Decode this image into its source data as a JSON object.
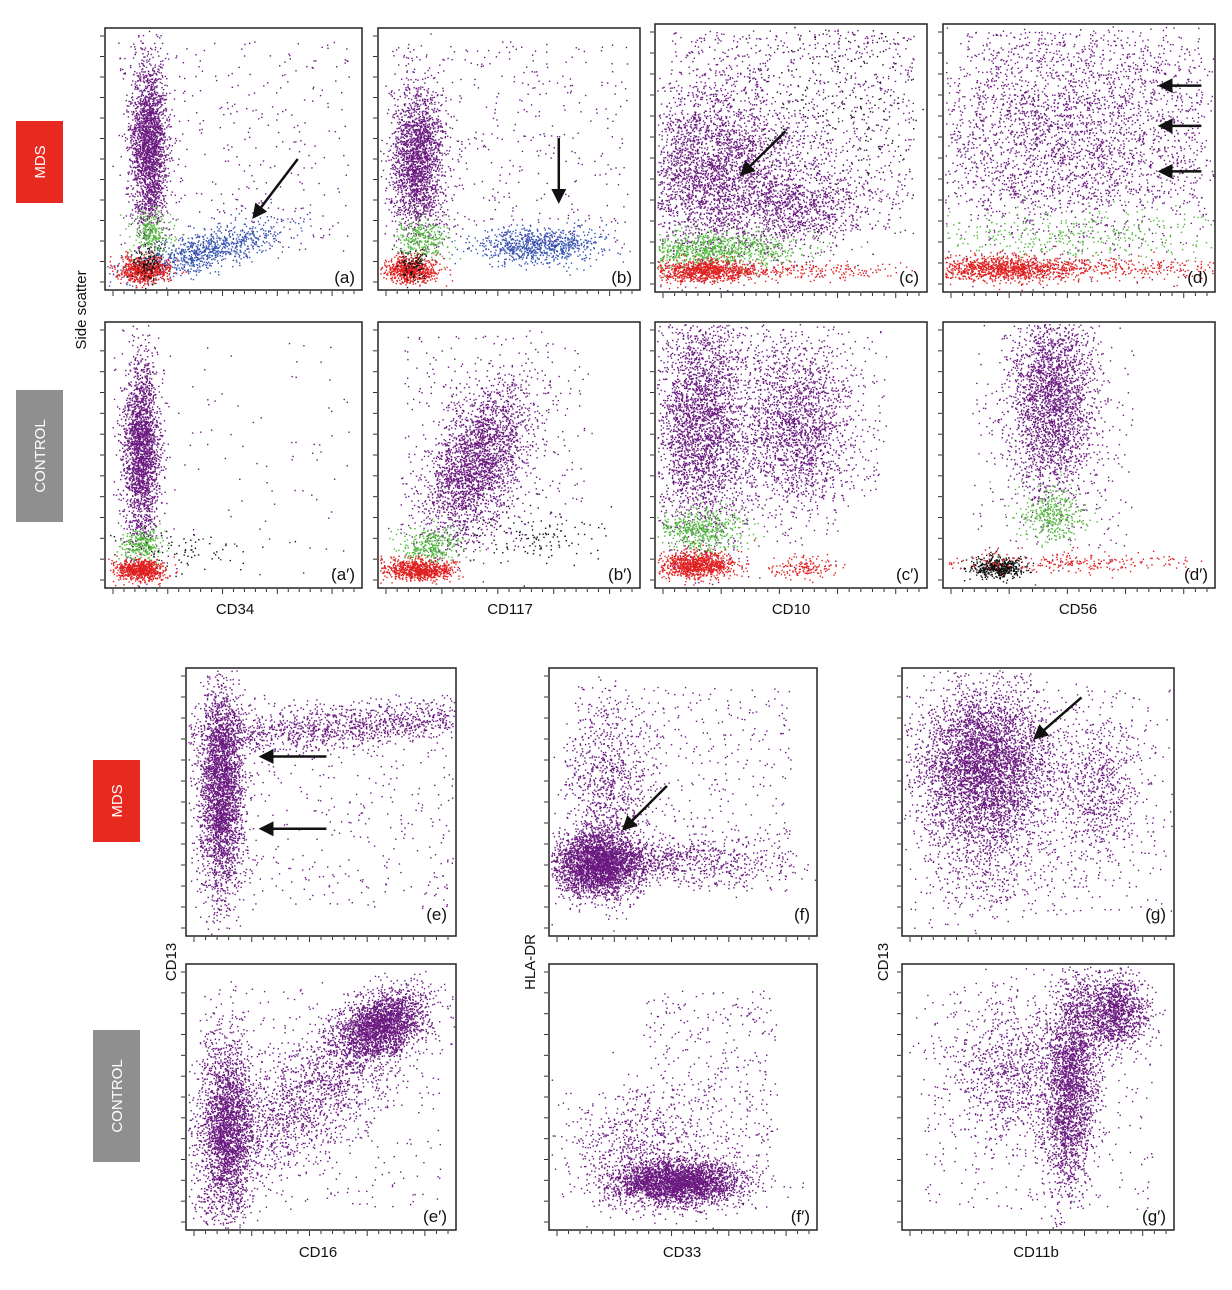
{
  "group_labels": {
    "mds": "MDS",
    "control": "CONTROL"
  },
  "colors": {
    "mds_tag": "#e8291f",
    "control_tag": "#8f8f8f",
    "purple": "#6b1a80",
    "green": "#4fb83a",
    "blue": "#3552b0",
    "red": "#e02020",
    "black": "#111111"
  },
  "axis_titles": {
    "side_scatter": "Side scatter",
    "cd34": "CD34",
    "cd117": "CD117",
    "cd10": "CD10",
    "cd56": "CD56",
    "cd13_left": "CD13",
    "hla_dr": "HLA-DR",
    "cd13_right": "CD13",
    "cd16": "CD16",
    "cd33": "CD33",
    "cd11b": "CD11b"
  },
  "panels": {
    "a": "(a)",
    "b": "(b)",
    "c": "(c)",
    "d": "(d)",
    "a2": "(a′)",
    "b2": "(b′)",
    "c2": "(c′)",
    "d2": "(d′)",
    "e": "(e)",
    "f": "(f)",
    "g": "(g)",
    "e2": "(e′)",
    "f2": "(f′)",
    "g2": "(g′)"
  },
  "chart_data": [
    {
      "type": "scatter",
      "panel": "(a)",
      "group": "MDS",
      "xlabel": "CD34",
      "ylabel": "Side scatter",
      "populations": [
        "purple",
        "green",
        "blue",
        "red",
        "black"
      ],
      "arrows": 1
    },
    {
      "type": "scatter",
      "panel": "(b)",
      "group": "MDS",
      "xlabel": "CD117",
      "ylabel": "Side scatter",
      "populations": [
        "purple",
        "green",
        "blue",
        "red",
        "black"
      ],
      "arrows": 1
    },
    {
      "type": "scatter",
      "panel": "(c)",
      "group": "MDS",
      "xlabel": "CD10",
      "ylabel": "Side scatter",
      "populations": [
        "purple",
        "green",
        "red",
        "black"
      ],
      "arrows": 1
    },
    {
      "type": "scatter",
      "panel": "(d)",
      "group": "MDS",
      "xlabel": "CD56",
      "ylabel": "Side scatter",
      "populations": [
        "purple",
        "green",
        "red"
      ],
      "arrows": 3
    },
    {
      "type": "scatter",
      "panel": "(a′)",
      "group": "CONTROL",
      "xlabel": "CD34",
      "ylabel": "Side scatter",
      "populations": [
        "purple",
        "green",
        "red",
        "black"
      ],
      "arrows": 0
    },
    {
      "type": "scatter",
      "panel": "(b′)",
      "group": "CONTROL",
      "xlabel": "CD117",
      "ylabel": "Side scatter",
      "populations": [
        "purple",
        "green",
        "red",
        "black"
      ],
      "arrows": 0
    },
    {
      "type": "scatter",
      "panel": "(c′)",
      "group": "CONTROL",
      "xlabel": "CD10",
      "ylabel": "Side scatter",
      "populations": [
        "purple",
        "green",
        "red"
      ],
      "arrows": 0
    },
    {
      "type": "scatter",
      "panel": "(d′)",
      "group": "CONTROL",
      "xlabel": "CD56",
      "ylabel": "Side scatter",
      "populations": [
        "purple",
        "green",
        "red",
        "black"
      ],
      "arrows": 0
    },
    {
      "type": "scatter",
      "panel": "(e)",
      "group": "MDS",
      "xlabel": "CD16",
      "ylabel": "CD13",
      "populations": [
        "purple"
      ],
      "arrows": 2
    },
    {
      "type": "scatter",
      "panel": "(f)",
      "group": "MDS",
      "xlabel": "CD33",
      "ylabel": "HLA-DR",
      "populations": [
        "purple"
      ],
      "arrows": 1
    },
    {
      "type": "scatter",
      "panel": "(g)",
      "group": "MDS",
      "xlabel": "CD11b",
      "ylabel": "CD13",
      "populations": [
        "purple"
      ],
      "arrows": 1
    },
    {
      "type": "scatter",
      "panel": "(e′)",
      "group": "CONTROL",
      "xlabel": "CD16",
      "ylabel": "CD13",
      "populations": [
        "purple"
      ],
      "arrows": 0
    },
    {
      "type": "scatter",
      "panel": "(f′)",
      "group": "CONTROL",
      "xlabel": "CD33",
      "ylabel": "HLA-DR",
      "populations": [
        "purple"
      ],
      "arrows": 0
    },
    {
      "type": "scatter",
      "panel": "(g′)",
      "group": "CONTROL",
      "xlabel": "CD11b",
      "ylabel": "CD13",
      "populations": [
        "purple"
      ],
      "arrows": 0
    }
  ]
}
